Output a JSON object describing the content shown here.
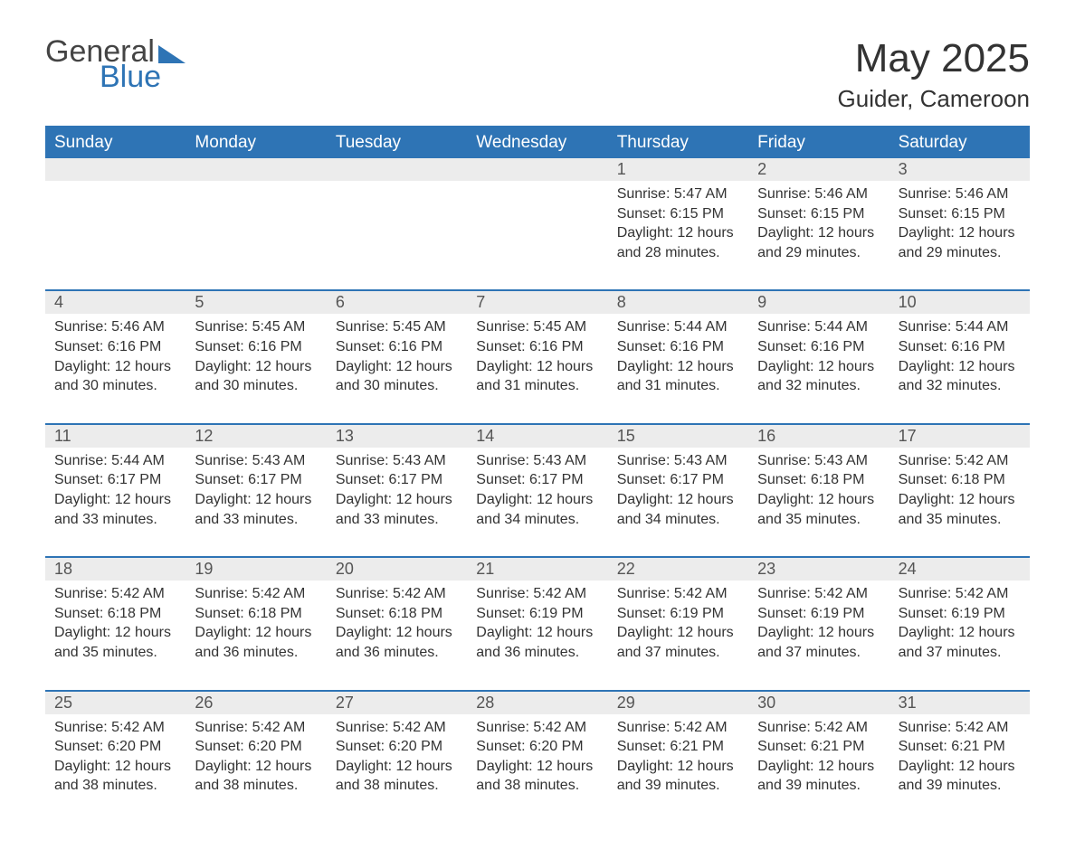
{
  "colors": {
    "accent": "#2e74b5",
    "header_bg": "#2e74b5",
    "header_text": "#ffffff",
    "daynum_bg": "#ececec",
    "text": "#333333",
    "page_bg": "#ffffff"
  },
  "typography": {
    "title_fontsize_pt": 33,
    "location_fontsize_pt": 20,
    "dayhead_fontsize_pt": 14,
    "body_fontsize_pt": 12,
    "font_family": "Arial"
  },
  "layout": {
    "columns": 7,
    "rows": 5,
    "first_weekday": "Sunday"
  },
  "logo": {
    "line1": "General",
    "line2": "Blue",
    "line1_color": "#444444",
    "line2_color": "#2e74b5"
  },
  "title": "May 2025",
  "location": "Guider, Cameroon",
  "day_headers": [
    "Sunday",
    "Monday",
    "Tuesday",
    "Wednesday",
    "Thursday",
    "Friday",
    "Saturday"
  ],
  "weeks": [
    {
      "days": [
        {
          "num": "",
          "sunrise": "",
          "sunset": "",
          "daylight1": "",
          "daylight2": ""
        },
        {
          "num": "",
          "sunrise": "",
          "sunset": "",
          "daylight1": "",
          "daylight2": ""
        },
        {
          "num": "",
          "sunrise": "",
          "sunset": "",
          "daylight1": "",
          "daylight2": ""
        },
        {
          "num": "",
          "sunrise": "",
          "sunset": "",
          "daylight1": "",
          "daylight2": ""
        },
        {
          "num": "1",
          "sunrise": "Sunrise: 5:47 AM",
          "sunset": "Sunset: 6:15 PM",
          "daylight1": "Daylight: 12 hours",
          "daylight2": "and 28 minutes."
        },
        {
          "num": "2",
          "sunrise": "Sunrise: 5:46 AM",
          "sunset": "Sunset: 6:15 PM",
          "daylight1": "Daylight: 12 hours",
          "daylight2": "and 29 minutes."
        },
        {
          "num": "3",
          "sunrise": "Sunrise: 5:46 AM",
          "sunset": "Sunset: 6:15 PM",
          "daylight1": "Daylight: 12 hours",
          "daylight2": "and 29 minutes."
        }
      ]
    },
    {
      "days": [
        {
          "num": "4",
          "sunrise": "Sunrise: 5:46 AM",
          "sunset": "Sunset: 6:16 PM",
          "daylight1": "Daylight: 12 hours",
          "daylight2": "and 30 minutes."
        },
        {
          "num": "5",
          "sunrise": "Sunrise: 5:45 AM",
          "sunset": "Sunset: 6:16 PM",
          "daylight1": "Daylight: 12 hours",
          "daylight2": "and 30 minutes."
        },
        {
          "num": "6",
          "sunrise": "Sunrise: 5:45 AM",
          "sunset": "Sunset: 6:16 PM",
          "daylight1": "Daylight: 12 hours",
          "daylight2": "and 30 minutes."
        },
        {
          "num": "7",
          "sunrise": "Sunrise: 5:45 AM",
          "sunset": "Sunset: 6:16 PM",
          "daylight1": "Daylight: 12 hours",
          "daylight2": "and 31 minutes."
        },
        {
          "num": "8",
          "sunrise": "Sunrise: 5:44 AM",
          "sunset": "Sunset: 6:16 PM",
          "daylight1": "Daylight: 12 hours",
          "daylight2": "and 31 minutes."
        },
        {
          "num": "9",
          "sunrise": "Sunrise: 5:44 AM",
          "sunset": "Sunset: 6:16 PM",
          "daylight1": "Daylight: 12 hours",
          "daylight2": "and 32 minutes."
        },
        {
          "num": "10",
          "sunrise": "Sunrise: 5:44 AM",
          "sunset": "Sunset: 6:16 PM",
          "daylight1": "Daylight: 12 hours",
          "daylight2": "and 32 minutes."
        }
      ]
    },
    {
      "days": [
        {
          "num": "11",
          "sunrise": "Sunrise: 5:44 AM",
          "sunset": "Sunset: 6:17 PM",
          "daylight1": "Daylight: 12 hours",
          "daylight2": "and 33 minutes."
        },
        {
          "num": "12",
          "sunrise": "Sunrise: 5:43 AM",
          "sunset": "Sunset: 6:17 PM",
          "daylight1": "Daylight: 12 hours",
          "daylight2": "and 33 minutes."
        },
        {
          "num": "13",
          "sunrise": "Sunrise: 5:43 AM",
          "sunset": "Sunset: 6:17 PM",
          "daylight1": "Daylight: 12 hours",
          "daylight2": "and 33 minutes."
        },
        {
          "num": "14",
          "sunrise": "Sunrise: 5:43 AM",
          "sunset": "Sunset: 6:17 PM",
          "daylight1": "Daylight: 12 hours",
          "daylight2": "and 34 minutes."
        },
        {
          "num": "15",
          "sunrise": "Sunrise: 5:43 AM",
          "sunset": "Sunset: 6:17 PM",
          "daylight1": "Daylight: 12 hours",
          "daylight2": "and 34 minutes."
        },
        {
          "num": "16",
          "sunrise": "Sunrise: 5:43 AM",
          "sunset": "Sunset: 6:18 PM",
          "daylight1": "Daylight: 12 hours",
          "daylight2": "and 35 minutes."
        },
        {
          "num": "17",
          "sunrise": "Sunrise: 5:42 AM",
          "sunset": "Sunset: 6:18 PM",
          "daylight1": "Daylight: 12 hours",
          "daylight2": "and 35 minutes."
        }
      ]
    },
    {
      "days": [
        {
          "num": "18",
          "sunrise": "Sunrise: 5:42 AM",
          "sunset": "Sunset: 6:18 PM",
          "daylight1": "Daylight: 12 hours",
          "daylight2": "and 35 minutes."
        },
        {
          "num": "19",
          "sunrise": "Sunrise: 5:42 AM",
          "sunset": "Sunset: 6:18 PM",
          "daylight1": "Daylight: 12 hours",
          "daylight2": "and 36 minutes."
        },
        {
          "num": "20",
          "sunrise": "Sunrise: 5:42 AM",
          "sunset": "Sunset: 6:18 PM",
          "daylight1": "Daylight: 12 hours",
          "daylight2": "and 36 minutes."
        },
        {
          "num": "21",
          "sunrise": "Sunrise: 5:42 AM",
          "sunset": "Sunset: 6:19 PM",
          "daylight1": "Daylight: 12 hours",
          "daylight2": "and 36 minutes."
        },
        {
          "num": "22",
          "sunrise": "Sunrise: 5:42 AM",
          "sunset": "Sunset: 6:19 PM",
          "daylight1": "Daylight: 12 hours",
          "daylight2": "and 37 minutes."
        },
        {
          "num": "23",
          "sunrise": "Sunrise: 5:42 AM",
          "sunset": "Sunset: 6:19 PM",
          "daylight1": "Daylight: 12 hours",
          "daylight2": "and 37 minutes."
        },
        {
          "num": "24",
          "sunrise": "Sunrise: 5:42 AM",
          "sunset": "Sunset: 6:19 PM",
          "daylight1": "Daylight: 12 hours",
          "daylight2": "and 37 minutes."
        }
      ]
    },
    {
      "days": [
        {
          "num": "25",
          "sunrise": "Sunrise: 5:42 AM",
          "sunset": "Sunset: 6:20 PM",
          "daylight1": "Daylight: 12 hours",
          "daylight2": "and 38 minutes."
        },
        {
          "num": "26",
          "sunrise": "Sunrise: 5:42 AM",
          "sunset": "Sunset: 6:20 PM",
          "daylight1": "Daylight: 12 hours",
          "daylight2": "and 38 minutes."
        },
        {
          "num": "27",
          "sunrise": "Sunrise: 5:42 AM",
          "sunset": "Sunset: 6:20 PM",
          "daylight1": "Daylight: 12 hours",
          "daylight2": "and 38 minutes."
        },
        {
          "num": "28",
          "sunrise": "Sunrise: 5:42 AM",
          "sunset": "Sunset: 6:20 PM",
          "daylight1": "Daylight: 12 hours",
          "daylight2": "and 38 minutes."
        },
        {
          "num": "29",
          "sunrise": "Sunrise: 5:42 AM",
          "sunset": "Sunset: 6:21 PM",
          "daylight1": "Daylight: 12 hours",
          "daylight2": "and 39 minutes."
        },
        {
          "num": "30",
          "sunrise": "Sunrise: 5:42 AM",
          "sunset": "Sunset: 6:21 PM",
          "daylight1": "Daylight: 12 hours",
          "daylight2": "and 39 minutes."
        },
        {
          "num": "31",
          "sunrise": "Sunrise: 5:42 AM",
          "sunset": "Sunset: 6:21 PM",
          "daylight1": "Daylight: 12 hours",
          "daylight2": "and 39 minutes."
        }
      ]
    }
  ]
}
